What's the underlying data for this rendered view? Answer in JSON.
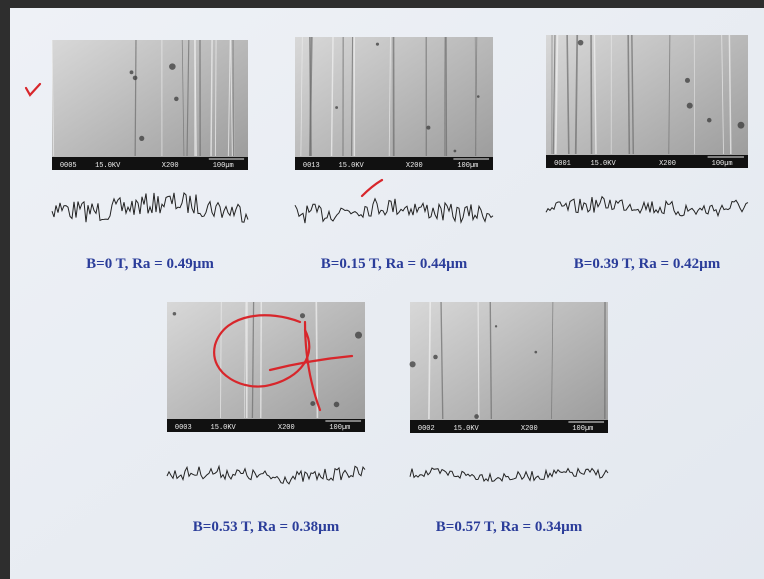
{
  "panels": [
    {
      "caption": "B=0 T, Ra = 0.49µm",
      "code": "0005",
      "kv": "15.0KV",
      "mag": "X200",
      "scale": "100µm"
    },
    {
      "caption": "B=0.15 T, Ra = 0.44µm",
      "code": "0013",
      "kv": "15.0KV",
      "mag": "X200",
      "scale": "100µm"
    },
    {
      "caption": "B=0.39 T, Ra = 0.42µm",
      "code": "0001",
      "kv": "15.0KV",
      "mag": "X200",
      "scale": "100µm"
    },
    {
      "caption": "B=0.53 T, Ra = 0.38µm",
      "code": "0003",
      "kv": "15.0KV",
      "mag": "X200",
      "scale": "100µm"
    },
    {
      "caption": "B=0.57 T, Ra = 0.34µm",
      "code": "0002",
      "kv": "15.0KV",
      "mag": "X200",
      "scale": "100µm"
    }
  ]
}
